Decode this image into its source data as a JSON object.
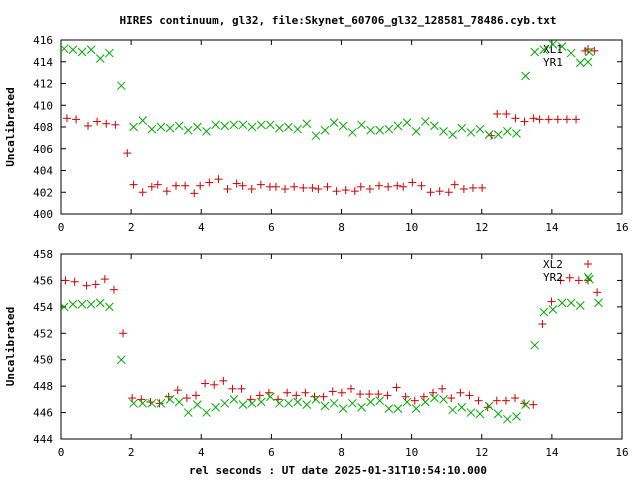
{
  "figure": {
    "title": "HIRES continuum, gl32, file:Skynet_60706_gl32_128581_78486.cyb.txt",
    "xlabel": "rel seconds : UT date 2025-01-31T10:54:10.000"
  },
  "chart_data": [
    {
      "type": "scatter",
      "ylabel": "Uncalibrated",
      "xlim": [
        0,
        16
      ],
      "ylim": [
        400,
        416
      ],
      "xticks": [
        "0",
        "2",
        "4",
        "6",
        "8",
        "10",
        "12",
        "14",
        "16"
      ],
      "yticks": [
        "400",
        "402",
        "404",
        "406",
        "408",
        "410",
        "412",
        "414",
        "416"
      ],
      "xtick_values": [
        0,
        2,
        4,
        6,
        8,
        10,
        12,
        14,
        16
      ],
      "ytick_values": [
        400,
        402,
        404,
        406,
        408,
        410,
        412,
        414,
        416
      ],
      "legend_position": "top-right",
      "series": [
        {
          "name": "XL1",
          "marker": "plus",
          "color": "#cc0000",
          "x": [
            0.17,
            0.43,
            0.77,
            1.03,
            1.29,
            1.55,
            1.89,
            2.07,
            2.33,
            2.59,
            2.76,
            3.02,
            3.28,
            3.54,
            3.8,
            3.97,
            4.23,
            4.49,
            4.75,
            5.01,
            5.18,
            5.44,
            5.7,
            5.96,
            6.13,
            6.39,
            6.65,
            6.91,
            7.17,
            7.34,
            7.6,
            7.86,
            8.12,
            8.38,
            8.55,
            8.81,
            9.07,
            9.33,
            9.59,
            9.76,
            10.02,
            10.28,
            10.54,
            10.8,
            11.06,
            11.23,
            11.49,
            11.75,
            12.01,
            12.27,
            12.44,
            12.7,
            12.96,
            13.22,
            13.48,
            13.65,
            13.91,
            14.17,
            14.43,
            14.69,
            14.95,
            15.21
          ],
          "y": [
            408.8,
            408.7,
            408.1,
            408.5,
            408.3,
            408.2,
            405.6,
            402.7,
            402.0,
            402.5,
            402.7,
            402.1,
            402.6,
            402.6,
            401.9,
            402.6,
            402.9,
            403.2,
            402.3,
            402.8,
            402.6,
            402.3,
            402.7,
            402.5,
            402.5,
            402.3,
            402.5,
            402.4,
            402.4,
            402.3,
            402.5,
            402.1,
            402.2,
            402.1,
            402.5,
            402.3,
            402.6,
            402.5,
            402.6,
            402.5,
            402.9,
            402.6,
            402.0,
            402.1,
            402.0,
            402.7,
            402.3,
            402.4,
            402.4,
            407.2,
            409.2,
            409.2,
            408.8,
            408.5,
            408.8,
            408.7,
            408.7,
            408.7,
            408.7,
            408.7,
            415.0,
            415.0
          ]
        },
        {
          "name": "YR1",
          "marker": "x",
          "color": "#00aa00",
          "x": [
            0.09,
            0.34,
            0.6,
            0.86,
            1.12,
            1.38,
            1.72,
            2.07,
            2.33,
            2.59,
            2.85,
            3.11,
            3.37,
            3.63,
            3.89,
            4.15,
            4.41,
            4.67,
            4.93,
            5.19,
            5.45,
            5.71,
            5.97,
            6.23,
            6.49,
            6.75,
            7.01,
            7.27,
            7.53,
            7.79,
            8.05,
            8.31,
            8.57,
            8.83,
            9.09,
            9.35,
            9.61,
            9.87,
            10.13,
            10.39,
            10.65,
            10.91,
            11.17,
            11.43,
            11.69,
            11.95,
            12.21,
            12.47,
            12.73,
            12.99,
            13.25,
            13.51,
            13.77,
            14.03,
            14.29,
            14.55,
            14.81,
            15.07
          ],
          "y": [
            415.2,
            415.1,
            414.9,
            415.1,
            414.3,
            414.8,
            411.8,
            408.0,
            408.6,
            407.8,
            408.0,
            407.9,
            408.1,
            407.7,
            408.0,
            407.6,
            408.2,
            408.1,
            408.2,
            408.2,
            408.0,
            408.2,
            408.2,
            407.9,
            408.0,
            407.8,
            408.3,
            407.2,
            407.7,
            408.4,
            408.1,
            407.5,
            408.2,
            407.7,
            407.7,
            407.8,
            408.1,
            408.4,
            407.6,
            408.5,
            408.1,
            407.6,
            407.3,
            407.9,
            407.5,
            407.8,
            407.3,
            407.3,
            407.6,
            407.4,
            412.7,
            414.9,
            415.1,
            415.6,
            415.4,
            414.8,
            413.9,
            414.9
          ]
        }
      ]
    },
    {
      "type": "scatter",
      "ylabel": "Uncalibrated",
      "xlim": [
        0,
        16
      ],
      "ylim": [
        444,
        458
      ],
      "xticks": [
        "0",
        "2",
        "4",
        "6",
        "8",
        "10",
        "12",
        "14",
        "16"
      ],
      "yticks": [
        "444",
        "446",
        "448",
        "450",
        "452",
        "454",
        "456",
        "458"
      ],
      "xtick_values": [
        0,
        2,
        4,
        6,
        8,
        10,
        12,
        14,
        16
      ],
      "ytick_values": [
        444,
        446,
        448,
        450,
        452,
        454,
        456,
        458
      ],
      "legend_position": "top-right",
      "series": [
        {
          "name": "XL2",
          "marker": "plus",
          "color": "#cc0000",
          "x": [
            0.13,
            0.39,
            0.73,
            0.99,
            1.25,
            1.51,
            1.77,
            2.03,
            2.29,
            2.55,
            2.81,
            3.07,
            3.33,
            3.59,
            3.85,
            4.11,
            4.37,
            4.63,
            4.89,
            5.15,
            5.41,
            5.67,
            5.93,
            6.19,
            6.45,
            6.71,
            6.97,
            7.23,
            7.49,
            7.75,
            8.01,
            8.27,
            8.53,
            8.79,
            9.05,
            9.31,
            9.57,
            9.83,
            10.09,
            10.35,
            10.61,
            10.87,
            11.13,
            11.39,
            11.65,
            11.91,
            12.17,
            12.43,
            12.69,
            12.95,
            13.21,
            13.47,
            13.73,
            13.99,
            14.25,
            14.51,
            14.77,
            15.03,
            15.29
          ],
          "y": [
            456.0,
            455.9,
            455.6,
            455.7,
            456.1,
            455.3,
            452.0,
            447.1,
            447.0,
            446.8,
            446.7,
            447.2,
            447.7,
            447.1,
            447.3,
            448.2,
            448.1,
            448.4,
            447.8,
            447.8,
            447.0,
            447.3,
            447.5,
            447.0,
            447.5,
            447.3,
            447.5,
            447.2,
            447.2,
            447.6,
            447.5,
            447.8,
            447.4,
            447.4,
            447.4,
            447.3,
            447.9,
            447.2,
            446.9,
            447.2,
            447.5,
            447.8,
            447.1,
            447.5,
            447.3,
            446.9,
            446.4,
            446.9,
            446.9,
            447.1,
            446.7,
            446.6,
            452.7,
            454.4,
            456.0,
            456.2,
            456.0,
            456.0,
            455.1
          ]
        },
        {
          "name": "YR2",
          "marker": "x",
          "color": "#00aa00",
          "x": [
            0.09,
            0.34,
            0.6,
            0.86,
            1.12,
            1.38,
            1.72,
            2.07,
            2.33,
            2.59,
            2.85,
            3.11,
            3.37,
            3.63,
            3.89,
            4.15,
            4.41,
            4.67,
            4.93,
            5.19,
            5.45,
            5.71,
            5.97,
            6.23,
            6.49,
            6.75,
            7.01,
            7.27,
            7.53,
            7.79,
            8.05,
            8.31,
            8.57,
            8.83,
            9.09,
            9.35,
            9.61,
            9.87,
            10.13,
            10.39,
            10.65,
            10.91,
            11.17,
            11.43,
            11.69,
            11.95,
            12.21,
            12.47,
            12.73,
            12.99,
            13.25,
            13.51,
            13.77,
            14.03,
            14.29,
            14.55,
            14.81,
            15.07,
            15.33
          ],
          "y": [
            454.0,
            454.2,
            454.2,
            454.2,
            454.3,
            454.0,
            450.0,
            446.7,
            446.7,
            446.7,
            446.7,
            447.0,
            446.8,
            446.0,
            446.6,
            446.0,
            446.4,
            446.7,
            447.0,
            446.6,
            446.7,
            446.8,
            447.2,
            446.7,
            446.7,
            446.8,
            446.6,
            447.0,
            446.5,
            446.7,
            446.3,
            446.7,
            446.4,
            446.8,
            446.9,
            446.3,
            446.3,
            446.8,
            446.3,
            446.8,
            447.1,
            447.0,
            446.2,
            446.4,
            446.0,
            445.9,
            446.5,
            445.9,
            445.5,
            445.7,
            446.6,
            451.1,
            453.6,
            453.8,
            454.3,
            454.3,
            454.1,
            456.1,
            454.3
          ]
        }
      ]
    }
  ]
}
